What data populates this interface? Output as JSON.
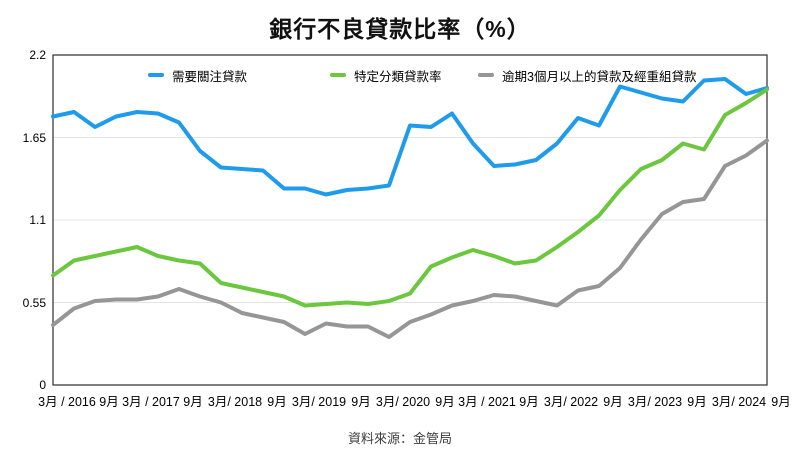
{
  "title": "銀行不良貸款比率（%）",
  "source": "資料來源：金管局",
  "chart_data": {
    "type": "line",
    "categories": [
      "2016-03",
      "2016-06",
      "2016-09",
      "2016-12",
      "2017-03",
      "2017-06",
      "2017-09",
      "2017-12",
      "2018-03",
      "2018-06",
      "2018-09",
      "2018-12",
      "2019-03",
      "2019-06",
      "2019-09",
      "2019-12",
      "2020-03",
      "2020-06",
      "2020-09",
      "2020-12",
      "2021-03",
      "2021-06",
      "2021-09",
      "2021-12",
      "2022-03",
      "2022-06",
      "2022-09",
      "2022-12",
      "2023-03",
      "2023-06",
      "2023-09",
      "2023-12",
      "2024-03",
      "2024-06",
      "2024-09"
    ],
    "series": [
      {
        "name": "需要關注貸款",
        "color": "#1E9BEB",
        "values": [
          1.79,
          1.82,
          1.72,
          1.79,
          1.82,
          1.81,
          1.75,
          1.56,
          1.45,
          1.44,
          1.43,
          1.31,
          1.31,
          1.27,
          1.3,
          1.31,
          1.33,
          1.73,
          1.72,
          1.81,
          1.61,
          1.46,
          1.47,
          1.5,
          1.61,
          1.78,
          1.73,
          1.99,
          1.95,
          1.91,
          1.89,
          2.03,
          2.04,
          1.94,
          1.98
        ]
      },
      {
        "name": "特定分類貸款率",
        "color": "#6BC83E",
        "values": [
          0.73,
          0.83,
          0.86,
          0.89,
          0.92,
          0.86,
          0.83,
          0.81,
          0.68,
          0.65,
          0.62,
          0.59,
          0.53,
          0.54,
          0.55,
          0.54,
          0.56,
          0.61,
          0.79,
          0.85,
          0.9,
          0.86,
          0.81,
          0.83,
          0.92,
          1.02,
          1.13,
          1.3,
          1.44,
          1.5,
          1.61,
          1.57,
          1.8,
          1.88,
          1.97
        ]
      },
      {
        "name": "逾期3個月以上的貸款及經重組貸款",
        "color": "#969696",
        "values": [
          0.4,
          0.51,
          0.56,
          0.57,
          0.57,
          0.59,
          0.64,
          0.59,
          0.55,
          0.48,
          0.45,
          0.42,
          0.34,
          0.41,
          0.39,
          0.39,
          0.32,
          0.42,
          0.47,
          0.53,
          0.56,
          0.6,
          0.59,
          0.56,
          0.53,
          0.63,
          0.66,
          0.78,
          0.97,
          1.14,
          1.22,
          1.24,
          1.46,
          1.53,
          1.63
        ]
      }
    ],
    "x_labels": [
      "3月 / 2016",
      "9月",
      "3月 / 2017",
      "9月",
      "3月/ 2018",
      "9月",
      "3月/ 2019",
      "9月",
      "3月/ 2020",
      "9月",
      "3月 / 2021",
      "9月",
      "3月/ 2022",
      "9月",
      "3月/ 2023",
      "9月",
      "3月/ 2024",
      "9月"
    ],
    "x_label_point_indices": [
      0,
      2,
      4,
      6,
      8,
      10,
      12,
      14,
      16,
      18,
      20,
      22,
      24,
      26,
      28,
      30,
      32,
      34
    ],
    "yticks": [
      0,
      0.55,
      1.1,
      1.65,
      2.2
    ],
    "ytick_labels": [
      "0",
      "0.55",
      "1.1",
      "1.65",
      "2.2"
    ],
    "ylim": [
      0,
      2.2
    ],
    "grid": true,
    "legend_position": "top",
    "frame_color": "#3c3c3c",
    "grid_color": "#e4e4e4"
  }
}
